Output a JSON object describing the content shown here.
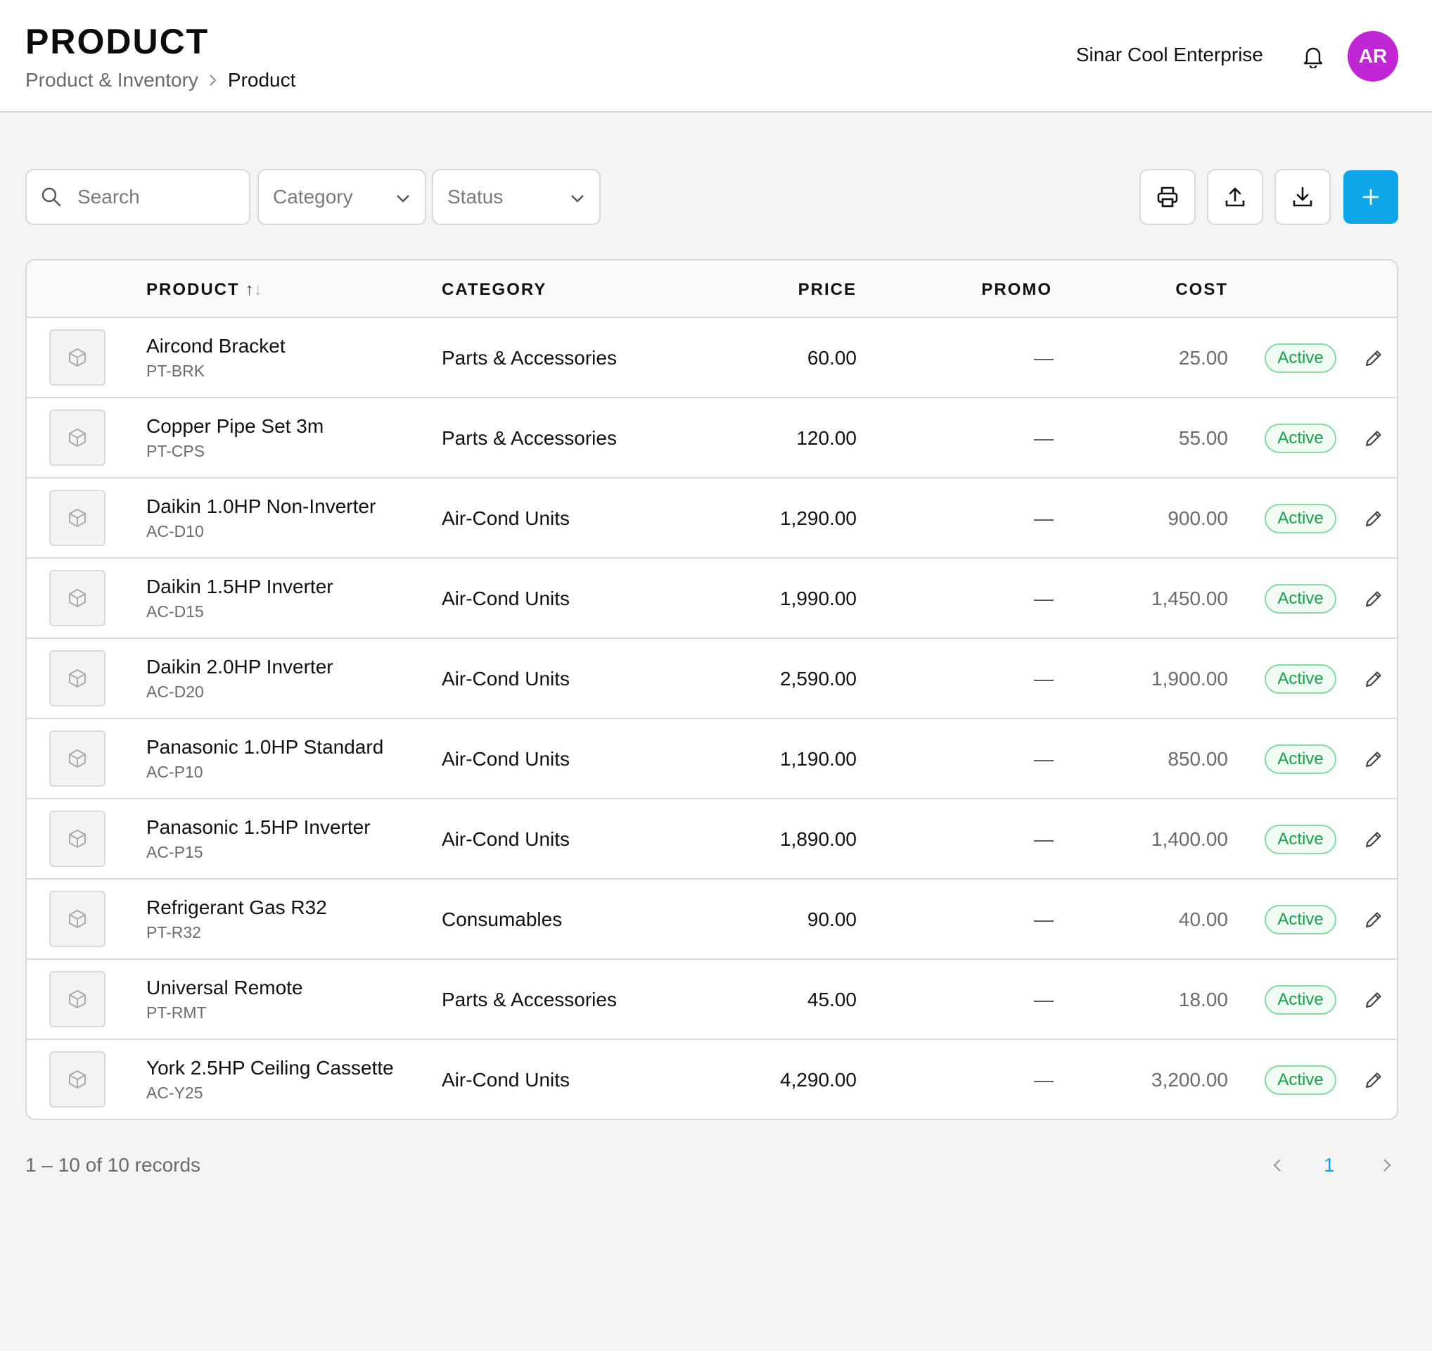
{
  "header": {
    "title": "PRODUCT",
    "breadcrumb": {
      "parent": "Product & Inventory",
      "current": "Product"
    },
    "company": "Sinar Cool Enterprise",
    "avatar_initials": "AR",
    "avatar_color": "#c026d3"
  },
  "toolbar": {
    "search_placeholder": "Search",
    "category_select": "Category",
    "status_select": "Status",
    "accent_color": "#0ea5e9"
  },
  "table": {
    "columns": {
      "product": "PRODUCT",
      "category": "CATEGORY",
      "price": "PRICE",
      "promo": "PROMO",
      "cost": "COST"
    },
    "rows": [
      {
        "name": "Aircond Bracket",
        "sku": "PT-BRK",
        "category": "Parts & Accessories",
        "price": "60.00",
        "promo": "—",
        "cost": "25.00",
        "status": "Active"
      },
      {
        "name": "Copper Pipe Set 3m",
        "sku": "PT-CPS",
        "category": "Parts & Accessories",
        "price": "120.00",
        "promo": "—",
        "cost": "55.00",
        "status": "Active"
      },
      {
        "name": "Daikin 1.0HP Non-Inverter",
        "sku": "AC-D10",
        "category": "Air-Cond Units",
        "price": "1,290.00",
        "promo": "—",
        "cost": "900.00",
        "status": "Active"
      },
      {
        "name": "Daikin 1.5HP Inverter",
        "sku": "AC-D15",
        "category": "Air-Cond Units",
        "price": "1,990.00",
        "promo": "—",
        "cost": "1,450.00",
        "status": "Active"
      },
      {
        "name": "Daikin 2.0HP Inverter",
        "sku": "AC-D20",
        "category": "Air-Cond Units",
        "price": "2,590.00",
        "promo": "—",
        "cost": "1,900.00",
        "status": "Active"
      },
      {
        "name": "Panasonic 1.0HP Standard",
        "sku": "AC-P10",
        "category": "Air-Cond Units",
        "price": "1,190.00",
        "promo": "—",
        "cost": "850.00",
        "status": "Active"
      },
      {
        "name": "Panasonic 1.5HP Inverter",
        "sku": "AC-P15",
        "category": "Air-Cond Units",
        "price": "1,890.00",
        "promo": "—",
        "cost": "1,400.00",
        "status": "Active"
      },
      {
        "name": "Refrigerant Gas R32",
        "sku": "PT-R32",
        "category": "Consumables",
        "price": "90.00",
        "promo": "—",
        "cost": "40.00",
        "status": "Active"
      },
      {
        "name": "Universal Remote",
        "sku": "PT-RMT",
        "category": "Parts & Accessories",
        "price": "45.00",
        "promo": "—",
        "cost": "18.00",
        "status": "Active"
      },
      {
        "name": "York 2.5HP Ceiling Cassette",
        "sku": "AC-Y25",
        "category": "Air-Cond Units",
        "price": "4,290.00",
        "promo": "—",
        "cost": "3,200.00",
        "status": "Active"
      }
    ]
  },
  "footer": {
    "records": "1 – 10 of 10 records",
    "current_page": "1"
  }
}
